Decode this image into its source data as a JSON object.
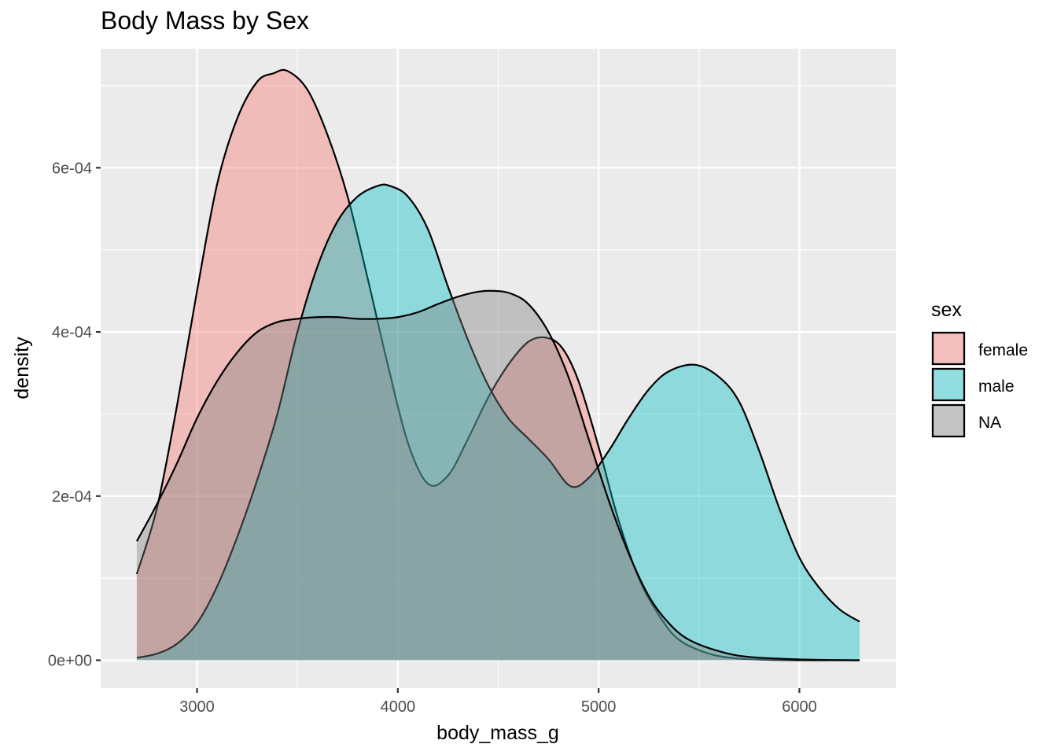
{
  "chart_data": {
    "type": "area",
    "subtype": "density",
    "title": "Body Mass by Sex",
    "xlabel": "body_mass_g",
    "ylabel": "density",
    "xlim": [
      2520,
      6480
    ],
    "ylim": [
      -3.4e-05,
      0.000745
    ],
    "x_ticks": [
      3000,
      4000,
      5000,
      6000
    ],
    "x_tick_labels": [
      "3000",
      "4000",
      "5000",
      "6000"
    ],
    "y_ticks": [
      0,
      0.0002,
      0.0004,
      0.0006
    ],
    "y_tick_labels": [
      "0e+00",
      "2e-04",
      "4e-04",
      "6e-04"
    ],
    "grid": true,
    "legend": {
      "title": "sex",
      "position": "right"
    },
    "series": [
      {
        "name": "female",
        "color": "#F8766D",
        "points": [
          [
            2700,
            0.000105
          ],
          [
            2800,
            0.000185
          ],
          [
            2900,
            0.00031
          ],
          [
            3000,
            0.00045
          ],
          [
            3100,
            0.00058
          ],
          [
            3200,
            0.00066
          ],
          [
            3300,
            0.000705
          ],
          [
            3380,
            0.000715
          ],
          [
            3450,
            0.000718
          ],
          [
            3550,
            0.000695
          ],
          [
            3650,
            0.00064
          ],
          [
            3750,
            0.000565
          ],
          [
            3850,
            0.000465
          ],
          [
            3950,
            0.00036
          ],
          [
            4050,
            0.000265
          ],
          [
            4150,
            0.000215
          ],
          [
            4250,
            0.000225
          ],
          [
            4350,
            0.00027
          ],
          [
            4450,
            0.00032
          ],
          [
            4550,
            0.00036
          ],
          [
            4650,
            0.000388
          ],
          [
            4740,
            0.000393
          ],
          [
            4820,
            0.00038
          ],
          [
            4900,
            0.00034
          ],
          [
            5000,
            0.00026
          ],
          [
            5100,
            0.00017
          ],
          [
            5200,
            0.0001
          ],
          [
            5300,
            5.5e-05
          ],
          [
            5400,
            2.5e-05
          ],
          [
            5550,
            8e-06
          ],
          [
            5700,
            2e-06
          ],
          [
            5900,
            3e-07
          ],
          [
            6100,
            0.0
          ],
          [
            6300,
            0.0
          ]
        ]
      },
      {
        "name": "male",
        "color": "#00BFC4",
        "points": [
          [
            2700,
            3e-06
          ],
          [
            2800,
            8e-06
          ],
          [
            2900,
            2e-05
          ],
          [
            3000,
            4.5e-05
          ],
          [
            3100,
            9e-05
          ],
          [
            3200,
            0.00015
          ],
          [
            3300,
            0.00022
          ],
          [
            3400,
            0.0003
          ],
          [
            3500,
            0.0004
          ],
          [
            3600,
            0.00048
          ],
          [
            3700,
            0.000535
          ],
          [
            3800,
            0.000565
          ],
          [
            3900,
            0.000578
          ],
          [
            3960,
            0.000578
          ],
          [
            4050,
            0.000565
          ],
          [
            4150,
            0.000525
          ],
          [
            4250,
            0.000455
          ],
          [
            4350,
            0.00039
          ],
          [
            4450,
            0.000335
          ],
          [
            4550,
            0.000295
          ],
          [
            4650,
            0.00027
          ],
          [
            4750,
            0.000245
          ],
          [
            4860,
            0.000212
          ],
          [
            4950,
            0.000222
          ],
          [
            5050,
            0.000255
          ],
          [
            5150,
            0.000295
          ],
          [
            5250,
            0.00033
          ],
          [
            5350,
            0.000352
          ],
          [
            5480,
            0.00036
          ],
          [
            5600,
            0.000345
          ],
          [
            5700,
            0.000315
          ],
          [
            5800,
            0.000255
          ],
          [
            5900,
            0.000185
          ],
          [
            6000,
            0.000125
          ],
          [
            6100,
            8.8e-05
          ],
          [
            6200,
            6.2e-05
          ],
          [
            6300,
            4.7e-05
          ]
        ]
      },
      {
        "name": "NA",
        "color": "#7F7F7F",
        "points": [
          [
            2700,
            0.000145
          ],
          [
            2800,
            0.00019
          ],
          [
            2900,
            0.00024
          ],
          [
            3000,
            0.000295
          ],
          [
            3100,
            0.00034
          ],
          [
            3200,
            0.000375
          ],
          [
            3300,
            0.0004
          ],
          [
            3400,
            0.000412
          ],
          [
            3500,
            0.000416
          ],
          [
            3600,
            0.000418
          ],
          [
            3700,
            0.000418
          ],
          [
            3800,
            0.000416
          ],
          [
            3900,
            0.000416
          ],
          [
            4000,
            0.000418
          ],
          [
            4100,
            0.000424
          ],
          [
            4200,
            0.000434
          ],
          [
            4300,
            0.000443
          ],
          [
            4400,
            0.000449
          ],
          [
            4480,
            0.00045
          ],
          [
            4560,
            0.000447
          ],
          [
            4650,
            0.000434
          ],
          [
            4750,
            0.0004
          ],
          [
            4850,
            0.000345
          ],
          [
            4950,
            0.00027
          ],
          [
            5050,
            0.000195
          ],
          [
            5150,
            0.00013
          ],
          [
            5250,
            7.8e-05
          ],
          [
            5350,
            4.5e-05
          ],
          [
            5450,
            2.5e-05
          ],
          [
            5600,
            1.1e-05
          ],
          [
            5750,
            4e-06
          ],
          [
            6000,
            1e-06
          ],
          [
            6300,
            0.0
          ]
        ]
      }
    ]
  }
}
